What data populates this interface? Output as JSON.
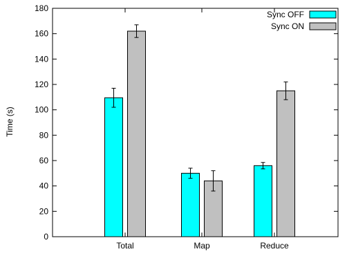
{
  "chart_data": {
    "type": "bar",
    "categories": [
      "Total",
      "Map",
      "Reduce"
    ],
    "series": [
      {
        "name": "Sync OFF",
        "values": [
          109.5,
          50,
          56
        ],
        "errors": [
          7.5,
          4,
          2.5
        ],
        "color": "#00ffff"
      },
      {
        "name": "Sync ON",
        "values": [
          162,
          44,
          115
        ],
        "errors": [
          5,
          8,
          7
        ],
        "color": "#c0c0c0"
      }
    ],
    "ylabel": "Time (s)",
    "ylim": [
      0,
      180
    ],
    "yticks": [
      0,
      20,
      40,
      60,
      80,
      100,
      120,
      140,
      160,
      180
    ],
    "grid": false,
    "legend_position": "top-right"
  }
}
